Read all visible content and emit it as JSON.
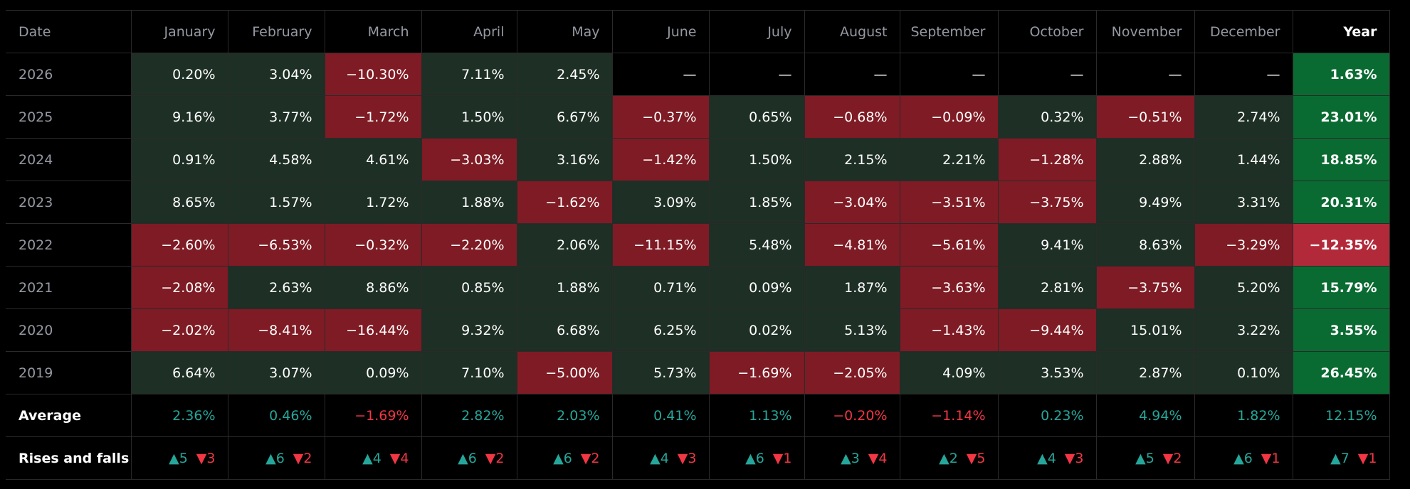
{
  "columns": [
    "Date",
    "January",
    "February",
    "March",
    "April",
    "May",
    "June",
    "July",
    "August",
    "September",
    "October",
    "November",
    "December",
    "Year"
  ],
  "rows": [
    {
      "label": "2026",
      "values": [
        "0.20%",
        "3.04%",
        "−10.30%",
        "7.11%",
        "2.45%",
        "—",
        "—",
        "—",
        "—",
        "—",
        "—",
        "—",
        "1.63%"
      ]
    },
    {
      "label": "2025",
      "values": [
        "9.16%",
        "3.77%",
        "−1.72%",
        "1.50%",
        "6.67%",
        "−0.37%",
        "0.65%",
        "−0.68%",
        "−0.09%",
        "0.32%",
        "−0.51%",
        "2.74%",
        "23.01%"
      ]
    },
    {
      "label": "2024",
      "values": [
        "0.91%",
        "4.58%",
        "4.61%",
        "−3.03%",
        "3.16%",
        "−1.42%",
        "1.50%",
        "2.15%",
        "2.21%",
        "−1.28%",
        "2.88%",
        "1.44%",
        "18.85%"
      ]
    },
    {
      "label": "2023",
      "values": [
        "8.65%",
        "1.57%",
        "1.72%",
        "1.88%",
        "−1.62%",
        "3.09%",
        "1.85%",
        "−3.04%",
        "−3.51%",
        "−3.75%",
        "9.49%",
        "3.31%",
        "20.31%"
      ]
    },
    {
      "label": "2022",
      "values": [
        "−2.60%",
        "−6.53%",
        "−0.32%",
        "−2.20%",
        "2.06%",
        "−11.15%",
        "5.48%",
        "−4.81%",
        "−5.61%",
        "9.41%",
        "8.63%",
        "−3.29%",
        "−12.35%"
      ]
    },
    {
      "label": "2021",
      "values": [
        "−2.08%",
        "2.63%",
        "8.86%",
        "0.85%",
        "1.88%",
        "0.71%",
        "0.09%",
        "1.87%",
        "−3.63%",
        "2.81%",
        "−3.75%",
        "5.20%",
        "15.79%"
      ]
    },
    {
      "label": "2020",
      "values": [
        "−2.02%",
        "−8.41%",
        "−16.44%",
        "9.32%",
        "6.68%",
        "6.25%",
        "0.02%",
        "5.13%",
        "−1.43%",
        "−9.44%",
        "15.01%",
        "3.22%",
        "3.55%"
      ]
    },
    {
      "label": "2019",
      "values": [
        "6.64%",
        "3.07%",
        "0.09%",
        "7.10%",
        "−5.00%",
        "5.73%",
        "−1.69%",
        "−2.05%",
        "4.09%",
        "3.53%",
        "2.87%",
        "0.10%",
        "26.45%"
      ]
    }
  ],
  "average": {
    "label": "Average",
    "values": [
      "2.36%",
      "0.46%",
      "−1.69%",
      "2.82%",
      "2.03%",
      "0.41%",
      "1.13%",
      "−0.20%",
      "−1.14%",
      "0.23%",
      "4.94%",
      "1.82%",
      "12.15%"
    ]
  },
  "rises_falls": {
    "label": "Rises and falls",
    "values": [
      {
        "up": "▲5",
        "down": "▼3"
      },
      {
        "up": "▲6",
        "down": "▼2"
      },
      {
        "up": "▲4",
        "down": "▼4"
      },
      {
        "up": "▲6",
        "down": "▼2"
      },
      {
        "up": "▲6",
        "down": "▼2"
      },
      {
        "up": "▲4",
        "down": "▼3"
      },
      {
        "up": "▲6",
        "down": "▼1"
      },
      {
        "up": "▲3",
        "down": "▼4"
      },
      {
        "up": "▲2",
        "down": "▼5"
      },
      {
        "up": "▲4",
        "down": "▼3"
      },
      {
        "up": "▲5",
        "down": "▼2"
      },
      {
        "up": "▲6",
        "down": "▼1"
      },
      {
        "up": "▲7",
        "down": "▼1"
      }
    ]
  },
  "colors": {
    "positive_cell": "#1e2f25",
    "negative_cell": "#7e1b24",
    "year_positive": "#0a6b32",
    "year_negative": "#b2293a",
    "average_positive_text": "#26a69a",
    "average_negative_text": "#f23645"
  }
}
